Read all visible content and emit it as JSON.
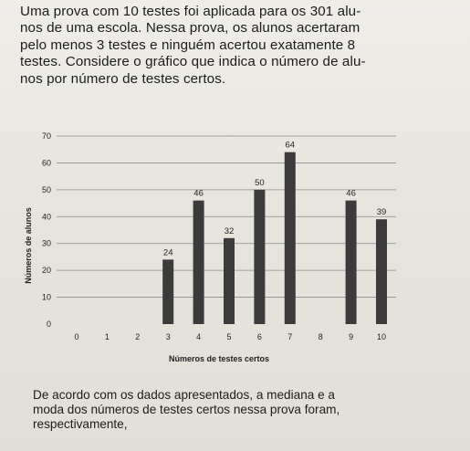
{
  "question": {
    "lines": [
      "Uma prova com 10 testes foi aplicada para os 301 alu-",
      "nos de uma escola. Nessa prova, os alunos acertaram",
      "pelo menos 3 testes e ninguém acertou exatamente 8",
      "testes. Considere o gráfico que indica o número de alu-",
      "nos por número de testes certos."
    ]
  },
  "footer": {
    "lines": [
      "De acordo com os dados apresentados, a mediana e a",
      "moda dos números de testes certos nessa prova foram,",
      "respectivamente,"
    ]
  },
  "chart_data": {
    "type": "bar",
    "categories": [
      "0",
      "1",
      "2",
      "3",
      "4",
      "5",
      "6",
      "7",
      "8",
      "9",
      "10"
    ],
    "values": [
      null,
      null,
      null,
      24,
      46,
      32,
      50,
      64,
      null,
      46,
      39
    ],
    "data_labels": [
      "",
      "",
      "",
      "24",
      "46",
      "32",
      "50",
      "64",
      "",
      "46",
      "39"
    ],
    "xlabel": "Números de testes certos",
    "ylabel": "Números de alunos",
    "ylim": [
      0,
      70
    ],
    "yticks": [
      0,
      10,
      20,
      30,
      40,
      50,
      60,
      70
    ],
    "grid": true,
    "bar_color": "#3b3b3b"
  }
}
